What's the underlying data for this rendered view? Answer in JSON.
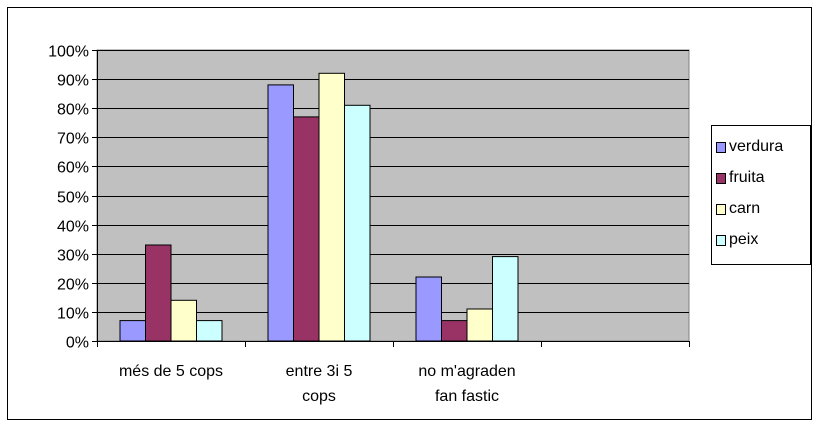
{
  "chart_data": {
    "type": "bar",
    "categories": [
      [
        "més de 5 cops"
      ],
      [
        "entre 3i 5",
        "cops"
      ],
      [
        "no m'agraden",
        "fan fastic"
      ],
      [
        ""
      ]
    ],
    "series": [
      {
        "name": "verdura",
        "color": "#9999ff",
        "values": [
          7,
          88,
          22,
          null
        ]
      },
      {
        "name": "fruita",
        "color": "#993366",
        "values": [
          33,
          77,
          7,
          null
        ]
      },
      {
        "name": "carn",
        "color": "#ffffcc",
        "values": [
          14,
          92,
          11,
          null
        ]
      },
      {
        "name": "peix",
        "color": "#ccffff",
        "values": [
          7,
          81,
          29,
          null
        ]
      }
    ],
    "y_ticks": [
      "0%",
      "10%",
      "20%",
      "30%",
      "40%",
      "50%",
      "60%",
      "70%",
      "80%",
      "90%",
      "100%"
    ],
    "ylim": [
      0,
      100
    ],
    "plot_background": "#c0c0c0",
    "grid": true,
    "legend_position": "right"
  }
}
